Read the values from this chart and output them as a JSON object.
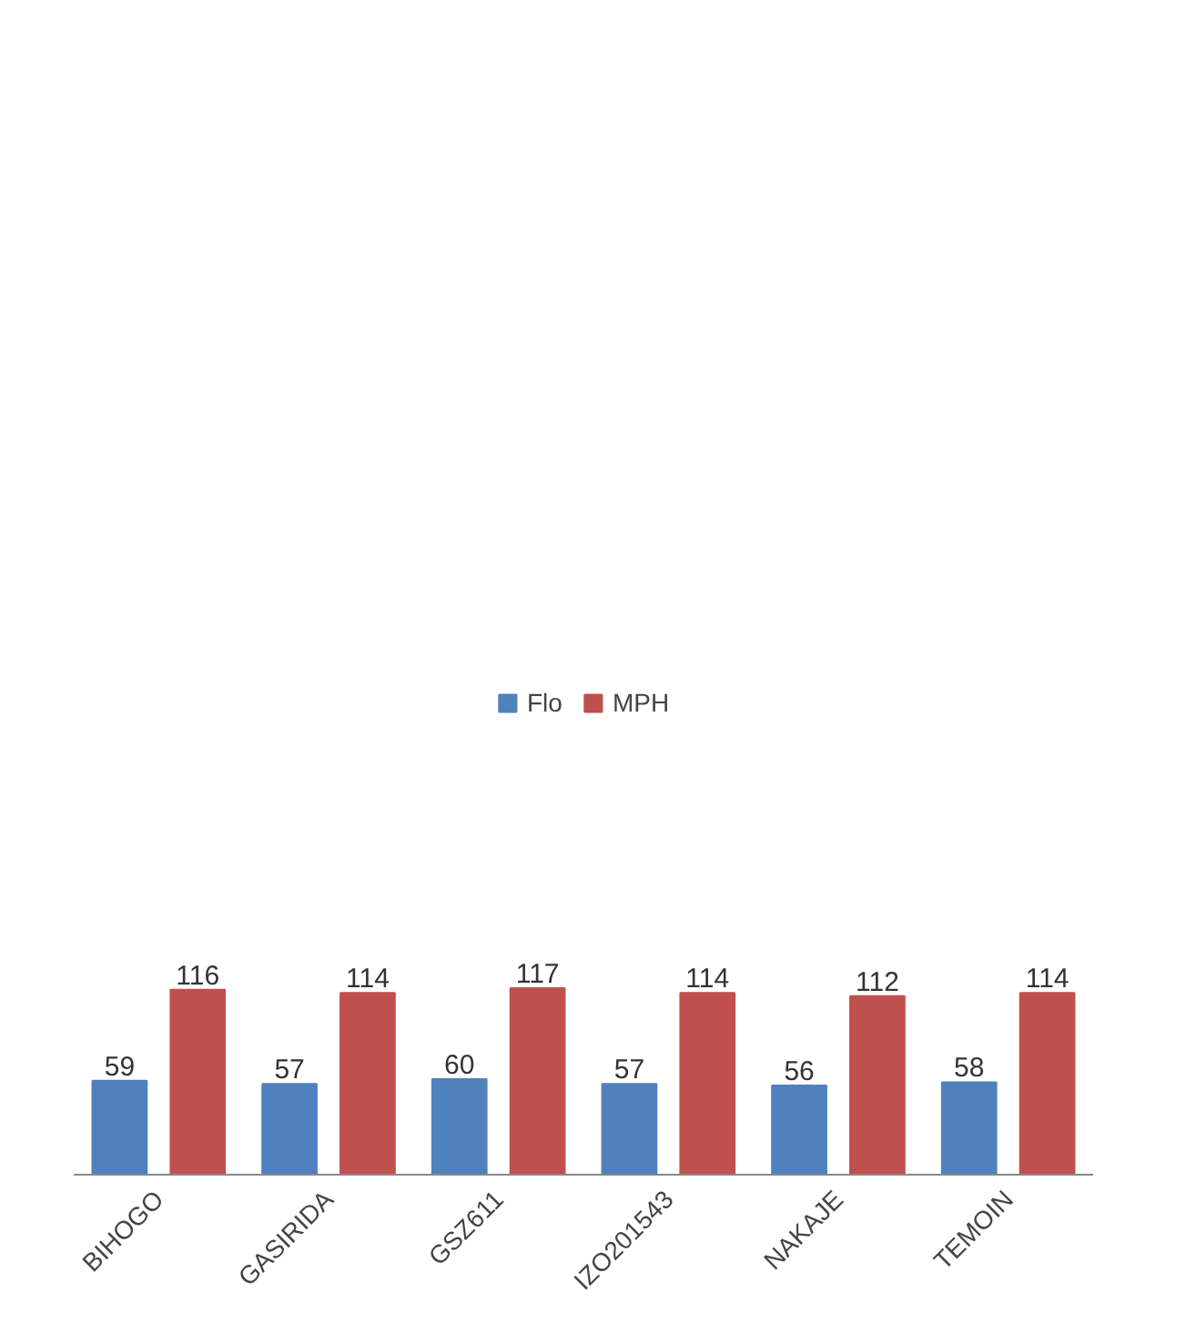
{
  "chart_data": {
    "type": "bar",
    "categories": [
      "BIHOGO",
      "GASIRIDA",
      "GSZ611",
      "IZO201543",
      "NAKAJE",
      "TEMOIN"
    ],
    "series": [
      {
        "name": "Flo",
        "color": "#4f81bd",
        "values": [
          59,
          57,
          60,
          57,
          56,
          58
        ]
      },
      {
        "name": "MPH",
        "color": "#c0504d",
        "values": [
          116,
          114,
          117,
          114,
          112,
          114
        ]
      }
    ],
    "data_labels": true,
    "legend": "top",
    "grid": false
  }
}
